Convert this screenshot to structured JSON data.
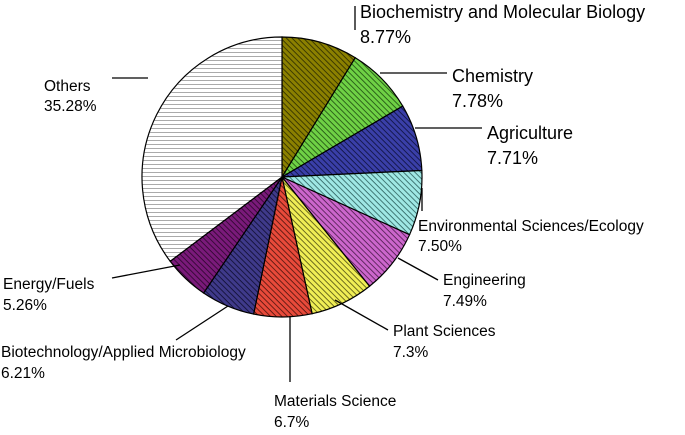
{
  "chart_data": {
    "type": "pie",
    "slices": [
      {
        "name": "Biochemistry and Molecular Biology",
        "label": "8.77%",
        "value": 8.77,
        "color": "#8b8000",
        "hatch": "#2a2a00"
      },
      {
        "name": "Chemistry",
        "label": "7.78%",
        "value": 7.78,
        "color": "#6fd145",
        "hatch": "#1d4a10"
      },
      {
        "name": "Agriculture",
        "label": "7.71%",
        "value": 7.71,
        "color": "#3a3fa8",
        "hatch": "#0d0f3a"
      },
      {
        "name": "Environmental Sciences/Ecology",
        "label": "7.50%",
        "value": 7.5,
        "color": "#9fe8e4",
        "hatch": "#2a5e5b"
      },
      {
        "name": "Engineering",
        "label": "7.49%",
        "value": 7.49,
        "color": "#cc66cc",
        "hatch": "#4a1a4a"
      },
      {
        "name": "Plant Sciences",
        "label": "7.3%",
        "value": 7.3,
        "color": "#f0ee55",
        "hatch": "#4d4c10"
      },
      {
        "name": "Materials Science",
        "label": "6.7%",
        "value": 6.7,
        "color": "#e84a3a",
        "hatch": "#4a120c"
      },
      {
        "name": "Biotechnology/Applied Microbiology",
        "label": "6.21%",
        "value": 6.21,
        "color": "#3f3a8a",
        "hatch": "#0e0c2e"
      },
      {
        "name": "Energy/Fuels",
        "label": "5.26%",
        "value": 5.26,
        "color": "#7a1a7a",
        "hatch": "#2a052a"
      },
      {
        "name": "Others",
        "label": "35.28%",
        "value": 35.28,
        "color": "#ffffff",
        "hatch": "#555555"
      }
    ]
  }
}
